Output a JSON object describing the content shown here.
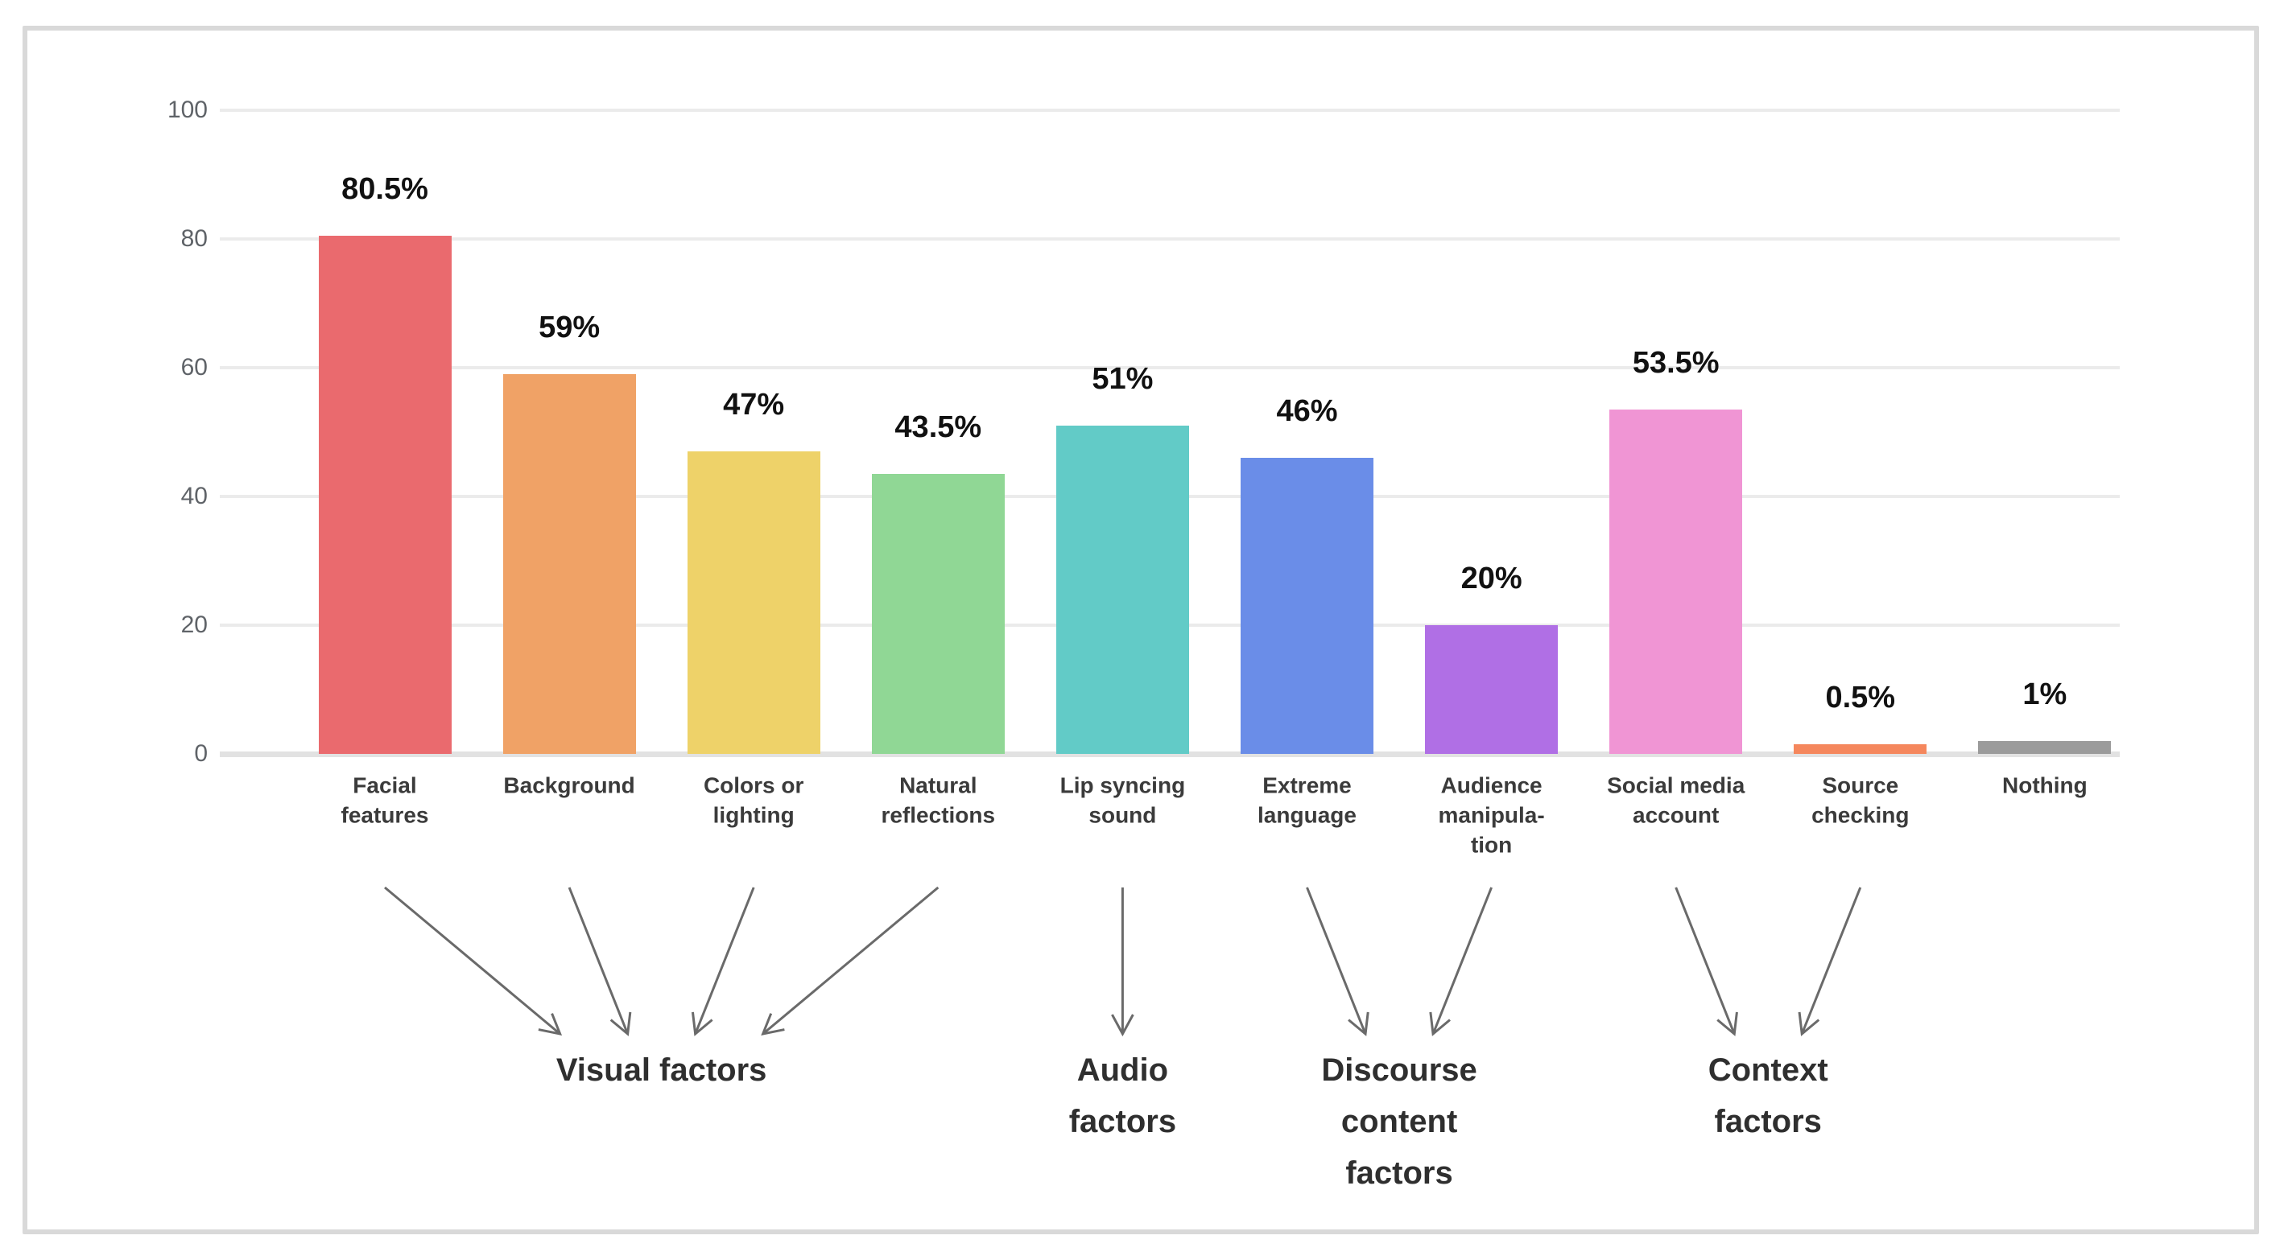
{
  "chart_data": {
    "type": "bar",
    "title": "",
    "xlabel": "",
    "ylabel": "",
    "ylim": [
      0,
      100
    ],
    "yticks": [
      "0",
      "20",
      "40",
      "60",
      "80",
      "100"
    ],
    "grid": true,
    "legend": null,
    "categories": [
      "Facial features",
      "Background",
      "Colors or lighting",
      "Natural reflections",
      "Lip syncing sound",
      "Extreme language",
      "Audience manipulation",
      "Social media account",
      "Source checking",
      "Nothing"
    ],
    "category_lines": [
      [
        "Facial",
        "features"
      ],
      [
        "Background"
      ],
      [
        "Colors or",
        "lighting"
      ],
      [
        "Natural",
        "reflections"
      ],
      [
        "Lip syncing",
        "sound"
      ],
      [
        "Extreme",
        "language"
      ],
      [
        "Audience",
        "manipula-",
        "tion"
      ],
      [
        "Social media",
        "account"
      ],
      [
        "Source",
        "checking"
      ],
      [
        "Nothing"
      ]
    ],
    "values": [
      80.5,
      59,
      47,
      43.5,
      51,
      46,
      20,
      53.5,
      0.5,
      1
    ],
    "value_labels": [
      "80.5%",
      "59%",
      "47%",
      "43.5%",
      "51%",
      "46%",
      "20%",
      "53.5%",
      "0.5%",
      "1%"
    ],
    "bar_colors": [
      "#ea6a6e",
      "#f0a266",
      "#eed269",
      "#90d795",
      "#62cbc7",
      "#6a8de8",
      "#b06fe5",
      "#f095d4",
      "#f5875d",
      "#9b9b9b"
    ],
    "groups": [
      {
        "label": "Visual factors",
        "lines": [
          "Visual factors"
        ],
        "bar_indices": [
          0,
          1,
          2,
          3
        ]
      },
      {
        "label": "Audio factors",
        "lines": [
          "Audio",
          "factors"
        ],
        "bar_indices": [
          4
        ]
      },
      {
        "label": "Discourse content factors",
        "lines": [
          "Discourse",
          "content",
          "factors"
        ],
        "bar_indices": [
          5,
          6
        ]
      },
      {
        "label": "Context factors",
        "lines": [
          "Context",
          "factors"
        ],
        "bar_indices": [
          7,
          8
        ]
      }
    ],
    "colors": {
      "value_label": "#111111",
      "category_label": "#3b3b3b",
      "group_label": "#2f2f2f",
      "tick_label": "#5f6368",
      "gridline": "#ebebeb",
      "axis_line": "#e2e2e2",
      "arrow": "#6a6a6a",
      "card_border": "#d9d9d9",
      "background": "#ffffff"
    }
  }
}
